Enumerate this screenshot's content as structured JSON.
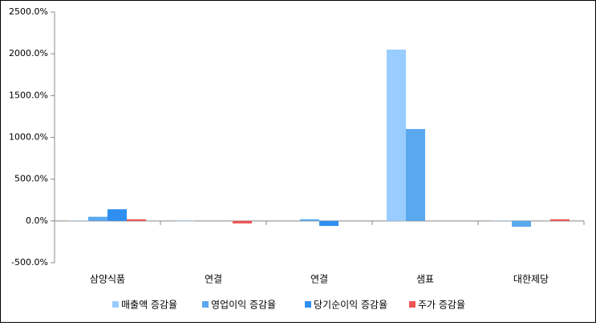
{
  "chart_data": {
    "type": "bar",
    "categories": [
      "삼양식품",
      "연결",
      "연결",
      "샘표",
      "대한제당"
    ],
    "series": [
      {
        "name": "매출액 증감율",
        "color": "#99ccff",
        "values": [
          5,
          -5,
          0,
          2050,
          5
        ]
      },
      {
        "name": "영업이익 증감율",
        "color": "#5aa9ef",
        "values": [
          50,
          0,
          20,
          1100,
          -70
        ]
      },
      {
        "name": "당기순이익 증감율",
        "color": "#2f8ff0",
        "values": [
          140,
          0,
          -60,
          0,
          0
        ]
      },
      {
        "name": "주가 증감율",
        "color": "#ee5555",
        "values": [
          20,
          -30,
          0,
          0,
          20
        ]
      }
    ],
    "ylim": [
      -500,
      2500
    ],
    "yticks": [
      {
        "value": -500,
        "label": "-500.0%"
      },
      {
        "value": 0,
        "label": "0.0%"
      },
      {
        "value": 500,
        "label": "500.0%"
      },
      {
        "value": 1000,
        "label": "1000.0%"
      },
      {
        "value": 1500,
        "label": "1500.0%"
      },
      {
        "value": 2000,
        "label": "2000.0%"
      },
      {
        "value": 2500,
        "label": "2500.0%"
      }
    ],
    "grid": false,
    "legend": "bottom"
  }
}
